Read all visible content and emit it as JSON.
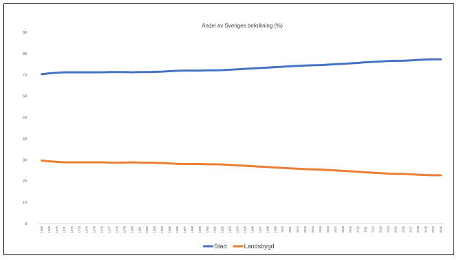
{
  "chart_data": {
    "type": "line",
    "title": "Andel av Sveriges befolkning (%)",
    "xlabel": "",
    "ylabel": "",
    "ylim": [
      0,
      90
    ],
    "yticks": [
      0,
      10,
      20,
      30,
      40,
      50,
      60,
      70,
      80,
      90
    ],
    "grid": false,
    "legend_position": "bottom",
    "categories": [
      "1968",
      "1969",
      "1970",
      "1971",
      "1972",
      "1973",
      "1974",
      "1975",
      "1976",
      "1977",
      "1978",
      "1979",
      "1980",
      "1981",
      "1982",
      "1983",
      "1984",
      "1985",
      "1986",
      "1987",
      "1988",
      "1989",
      "1990",
      "1991",
      "1992",
      "1993",
      "1994",
      "1995",
      "1996",
      "1997",
      "1998",
      "1999",
      "2000",
      "2001",
      "2002",
      "2003",
      "2004",
      "2005",
      "2006",
      "2007",
      "2008",
      "2009",
      "2010",
      "2011",
      "2012",
      "2013",
      "2014",
      "2015",
      "2016",
      "2017",
      "2018",
      "2019",
      "2020",
      "2021"
    ],
    "series": [
      {
        "name": "Stad",
        "color": "#4472C4",
        "values": [
          70.3,
          70.7,
          71.0,
          71.2,
          71.2,
          71.2,
          71.2,
          71.2,
          71.2,
          71.3,
          71.3,
          71.3,
          71.2,
          71.3,
          71.3,
          71.4,
          71.5,
          71.7,
          71.9,
          72.0,
          72.0,
          72.0,
          72.1,
          72.1,
          72.2,
          72.4,
          72.6,
          72.8,
          73.0,
          73.2,
          73.4,
          73.6,
          73.8,
          74.0,
          74.2,
          74.4,
          74.5,
          74.6,
          74.8,
          75.0,
          75.2,
          75.4,
          75.6,
          75.9,
          76.1,
          76.3,
          76.5,
          76.6,
          76.6,
          76.8,
          77.0,
          77.2,
          77.3,
          77.3
        ]
      },
      {
        "name": "Landsbygd",
        "color": "#ED7D31",
        "values": [
          29.7,
          29.3,
          29.0,
          28.8,
          28.8,
          28.8,
          28.8,
          28.8,
          28.8,
          28.7,
          28.7,
          28.7,
          28.8,
          28.7,
          28.7,
          28.6,
          28.5,
          28.3,
          28.1,
          28.0,
          28.0,
          28.0,
          27.9,
          27.9,
          27.8,
          27.6,
          27.4,
          27.2,
          27.0,
          26.8,
          26.6,
          26.4,
          26.2,
          26.0,
          25.8,
          25.6,
          25.5,
          25.4,
          25.2,
          25.0,
          24.8,
          24.6,
          24.4,
          24.1,
          23.9,
          23.7,
          23.5,
          23.4,
          23.4,
          23.2,
          23.0,
          22.8,
          22.7,
          22.7
        ]
      }
    ]
  }
}
